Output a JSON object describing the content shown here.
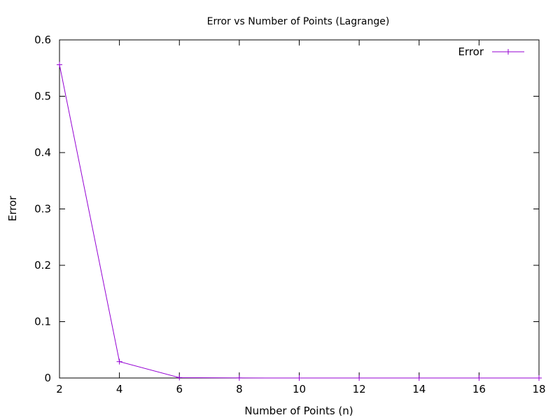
{
  "chart_data": {
    "type": "line",
    "title": "Error vs Number of Points (Lagrange)",
    "xlabel": "Number of Points (n)",
    "ylabel": "Error",
    "xlim": [
      2,
      18
    ],
    "ylim": [
      0,
      0.6
    ],
    "xticks": [
      2,
      4,
      6,
      8,
      10,
      12,
      14,
      16,
      18
    ],
    "yticks": [
      0,
      0.1,
      0.2,
      0.3,
      0.4,
      0.5,
      0.6
    ],
    "xtick_labels": [
      "2",
      "4",
      "6",
      "8",
      "10",
      "12",
      "14",
      "16",
      "18"
    ],
    "ytick_labels": [
      "0",
      "0.1",
      "0.2",
      "0.3",
      "0.4",
      "0.5",
      "0.6"
    ],
    "grid": false,
    "legend": "top-right",
    "series": [
      {
        "name": "Error",
        "color": "#9400d3",
        "marker": "plus",
        "x": [
          2,
          4,
          6,
          8,
          10,
          12,
          14,
          16,
          18
        ],
        "y": [
          0.556,
          0.029,
          0.0007,
          0.0001,
          0.0,
          0.0,
          0.0,
          0.0,
          0.0
        ]
      }
    ]
  }
}
